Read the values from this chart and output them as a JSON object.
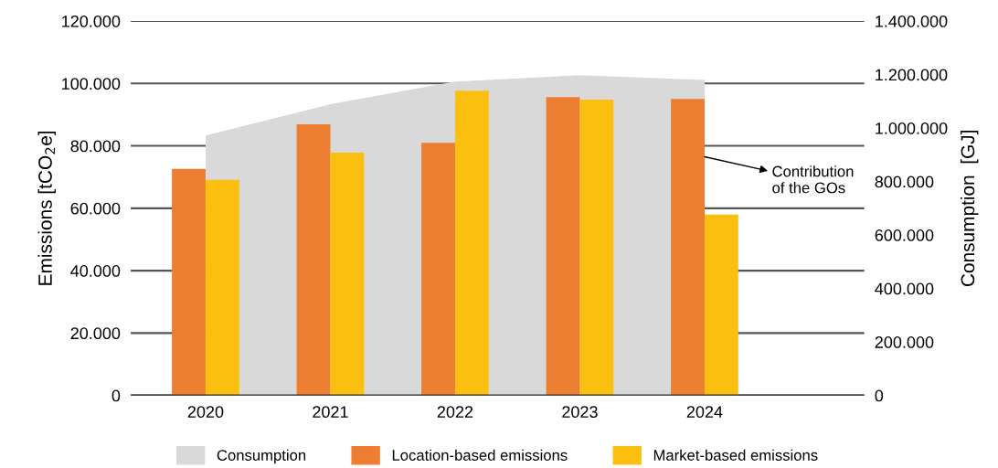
{
  "chart_data": {
    "type": "bar",
    "categories": [
      "2020",
      "2021",
      "2022",
      "2023",
      "2024"
    ],
    "ylabel": "Emissions [tCO$_{2}$e]",
    "y2label": "Consumption  [GJ]",
    "series": [
      {
        "name": "Consumption",
        "type": "area",
        "axis": "y2",
        "color": "#d9d9d9",
        "values": [
          972000,
          1089000,
          1174000,
          1198000,
          1180000
        ]
      },
      {
        "name": "Location-based emissions",
        "color": "#ed7d31",
        "values": [
          72600,
          86900,
          81000,
          95600,
          95000
        ]
      },
      {
        "name": "Market-based emissions",
        "color": "#fbbf10",
        "values": [
          69100,
          77800,
          97700,
          94800,
          58000
        ]
      }
    ],
    "ylim": [
      0,
      120000
    ],
    "yticks": [
      {
        "value": 0,
        "label": "0"
      },
      {
        "value": 20000,
        "label": "20.000"
      },
      {
        "value": 40000,
        "label": "40.000"
      },
      {
        "value": 60000,
        "label": "60.000"
      },
      {
        "value": 80000,
        "label": "80.000"
      },
      {
        "value": 100000,
        "label": "100.000"
      },
      {
        "value": 120000,
        "label": "120.000"
      }
    ],
    "y2lim": [
      0,
      1400000
    ],
    "y2ticks": [
      {
        "value": 0,
        "label": "0"
      },
      {
        "value": 200000,
        "label": "200.000"
      },
      {
        "value": 400000,
        "label": "400.000"
      },
      {
        "value": 600000,
        "label": "600.000"
      },
      {
        "value": 800000,
        "label": "800.000"
      },
      {
        "value": 1000000,
        "label": "1.000.000"
      },
      {
        "value": 1200000,
        "label": "1.200.000"
      },
      {
        "value": 1400000,
        "label": "1.400.000"
      }
    ],
    "annotations": [
      {
        "text": "Contribution\nof the GOs",
        "x": "2024",
        "y": 76500
      }
    ],
    "grid": "y",
    "legend": "bottom"
  }
}
